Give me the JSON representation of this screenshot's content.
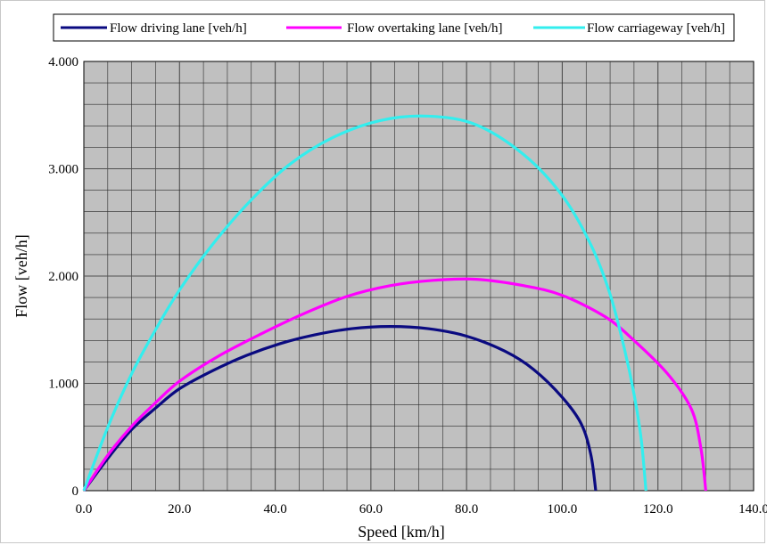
{
  "chart_data": {
    "type": "line",
    "xlabel": "Speed [km/h]",
    "ylabel": "Flow [veh/h]",
    "xlim": [
      0,
      140
    ],
    "ylim": [
      0,
      4000
    ],
    "x_tick_labels": [
      "0.0",
      "20.0",
      "40.0",
      "60.0",
      "80.0",
      "100.0",
      "120.0",
      "140.0"
    ],
    "y_tick_labels": [
      "0",
      "1.000",
      "2.000",
      "3.000",
      "4.000"
    ],
    "grid": true,
    "legend_position": "top",
    "plot_background": "#c0c0c0",
    "series": [
      {
        "name": "Flow driving lane [veh/h]",
        "color": "#0a0a80",
        "x": [
          0,
          5,
          10,
          15,
          20,
          27,
          34,
          41,
          48,
          56,
          64,
          72,
          80,
          88,
          94,
          100,
          104,
          106,
          107
        ],
        "y": [
          0,
          300,
          570,
          770,
          950,
          1120,
          1260,
          1370,
          1450,
          1510,
          1530,
          1510,
          1440,
          1300,
          1130,
          870,
          620,
          330,
          0
        ]
      },
      {
        "name": "Flow overtaking lane [veh/h]",
        "color": "#ff00ff",
        "x": [
          0,
          5,
          10,
          15,
          20,
          28,
          37,
          46,
          55,
          64,
          73,
          82,
          92,
          100,
          109,
          115,
          122,
          127,
          129,
          130
        ],
        "y": [
          0,
          330,
          600,
          820,
          1020,
          1250,
          1460,
          1650,
          1810,
          1910,
          1960,
          1970,
          1910,
          1820,
          1620,
          1400,
          1090,
          760,
          390,
          0
        ]
      },
      {
        "name": "Flow carriageway [veh/h]",
        "color": "#33eeee",
        "x": [
          0,
          5,
          10,
          15,
          20,
          27,
          35,
          43,
          52,
          62,
          72,
          82,
          92,
          100,
          106,
          110,
          113,
          115,
          116.5,
          117.5
        ],
        "y": [
          0,
          590,
          1090,
          1500,
          1870,
          2300,
          2710,
          3040,
          3290,
          3450,
          3490,
          3410,
          3130,
          2750,
          2290,
          1830,
          1320,
          900,
          480,
          0
        ]
      }
    ]
  }
}
